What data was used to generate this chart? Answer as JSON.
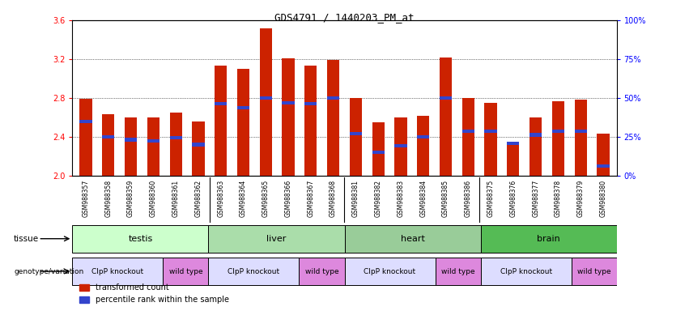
{
  "title": "GDS4791 / 1440203_PM_at",
  "samples": [
    "GSM988357",
    "GSM988358",
    "GSM988359",
    "GSM988360",
    "GSM988361",
    "GSM988362",
    "GSM988363",
    "GSM988364",
    "GSM988365",
    "GSM988366",
    "GSM988367",
    "GSM988368",
    "GSM988381",
    "GSM988382",
    "GSM988383",
    "GSM988384",
    "GSM988385",
    "GSM988386",
    "GSM988375",
    "GSM988376",
    "GSM988377",
    "GSM988378",
    "GSM988379",
    "GSM988380"
  ],
  "bar_heights": [
    2.79,
    2.63,
    2.6,
    2.6,
    2.65,
    2.56,
    3.13,
    3.1,
    3.52,
    3.21,
    3.13,
    3.19,
    2.8,
    2.55,
    2.6,
    2.62,
    3.22,
    2.8,
    2.75,
    2.33,
    2.6,
    2.77,
    2.78,
    2.43
  ],
  "blue_marker_pos": [
    2.56,
    2.4,
    2.37,
    2.36,
    2.39,
    2.32,
    2.74,
    2.7,
    2.8,
    2.75,
    2.74,
    2.8,
    2.43,
    2.24,
    2.31,
    2.4,
    2.8,
    2.46,
    2.46,
    2.33,
    2.42,
    2.46,
    2.46,
    2.1
  ],
  "ylim": [
    2.0,
    3.6
  ],
  "yticks_left": [
    2.0,
    2.4,
    2.8,
    3.2,
    3.6
  ],
  "ytick_labels_right": [
    "0%",
    "25%",
    "50%",
    "75%",
    "100%"
  ],
  "bar_color": "#cc2200",
  "blue_color": "#3344cc",
  "tissue_groups": [
    {
      "label": "testis",
      "start": 0,
      "end": 6,
      "color": "#ccffcc"
    },
    {
      "label": "liver",
      "start": 6,
      "end": 12,
      "color": "#aaddaa"
    },
    {
      "label": "heart",
      "start": 12,
      "end": 18,
      "color": "#99cc99"
    },
    {
      "label": "brain",
      "start": 18,
      "end": 24,
      "color": "#55bb55"
    }
  ],
  "genotype_groups": [
    {
      "label": "ClpP knockout",
      "start": 0,
      "end": 4,
      "color": "#ddddff"
    },
    {
      "label": "wild type",
      "start": 4,
      "end": 6,
      "color": "#dd88dd"
    },
    {
      "label": "ClpP knockout",
      "start": 6,
      "end": 10,
      "color": "#ddddff"
    },
    {
      "label": "wild type",
      "start": 10,
      "end": 12,
      "color": "#dd88dd"
    },
    {
      "label": "ClpP knockout",
      "start": 12,
      "end": 16,
      "color": "#ddddff"
    },
    {
      "label": "wild type",
      "start": 16,
      "end": 18,
      "color": "#dd88dd"
    },
    {
      "label": "ClpP knockout",
      "start": 18,
      "end": 22,
      "color": "#ddddff"
    },
    {
      "label": "wild type",
      "start": 22,
      "end": 24,
      "color": "#dd88dd"
    }
  ],
  "bar_width": 0.55,
  "label_tissue": "tissue",
  "label_genotype": "genotype/variation",
  "legend_red": "transformed count",
  "legend_blue": "percentile rank within the sample",
  "xticklabel_bg": "#dddddd"
}
